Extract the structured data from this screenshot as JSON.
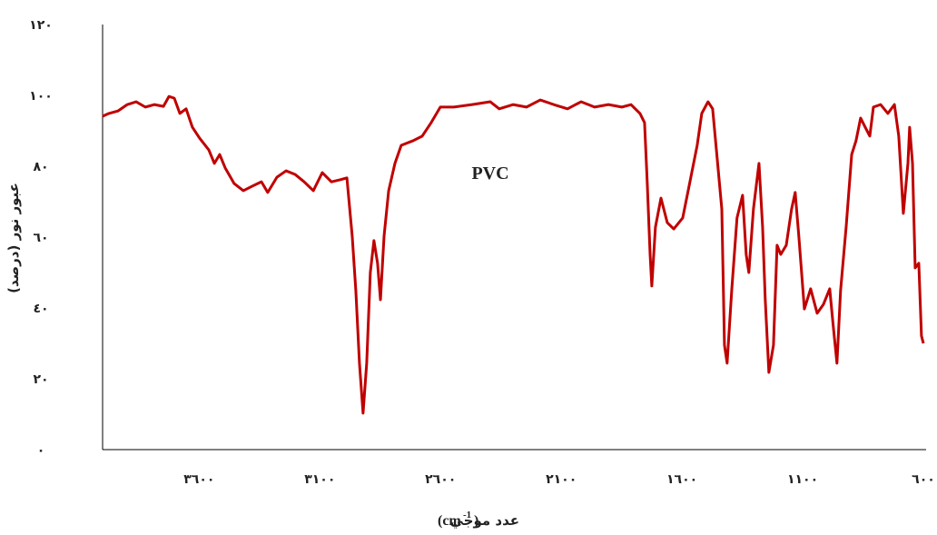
{
  "chart_data": {
    "type": "line",
    "title": "PVC",
    "y_label": "عبور نور (درصد)",
    "x_label": {
      "text": "عدد موجي",
      "unit": "(cm",
      "exponent": "-1",
      "close": ")"
    },
    "xlim": [
      4000,
      600
    ],
    "ylim": [
      0,
      120
    ],
    "xticks": [
      {
        "value": 3600,
        "label": "٣٦٠٠"
      },
      {
        "value": 3100,
        "label": "٣١٠٠"
      },
      {
        "value": 2600,
        "label": "٢٦٠٠"
      },
      {
        "value": 2100,
        "label": "٢١٠٠"
      },
      {
        "value": 1600,
        "label": "١٦٠٠"
      },
      {
        "value": 1100,
        "label": "١١٠٠"
      },
      {
        "value": 600,
        "label": "٦٠٠"
      }
    ],
    "yticks": [
      {
        "value": 0,
        "label": "٠"
      },
      {
        "value": 20,
        "label": "٢٠"
      },
      {
        "value": 40,
        "label": "٤٠"
      },
      {
        "value": 60,
        "label": "٦٠"
      },
      {
        "value": 80,
        "label": "٨٠"
      },
      {
        "value": 100,
        "label": "١٠٠"
      },
      {
        "value": 120,
        "label": "١٢٠"
      }
    ],
    "grid": false,
    "series": [
      {
        "color": "#c00000",
        "x": [
          4000,
          3974,
          3936,
          3898,
          3861,
          3823,
          3786,
          3748,
          3725,
          3703,
          3680,
          3654,
          3628,
          3598,
          3560,
          3537,
          3515,
          3492,
          3455,
          3417,
          3379,
          3342,
          3316,
          3278,
          3240,
          3203,
          3165,
          3127,
          3090,
          3052,
          3015,
          2988,
          2966,
          2951,
          2936,
          2921,
          2906,
          2891,
          2876,
          2861,
          2849,
          2834,
          2815,
          2789,
          2763,
          2714,
          2676,
          2639,
          2601,
          2545,
          2469,
          2394,
          2357,
          2300,
          2244,
          2187,
          2131,
          2074,
          2018,
          1962,
          1905,
          1849,
          1811,
          1774,
          1755,
          1744,
          1732,
          1725,
          1710,
          1687,
          1661,
          1634,
          1597,
          1567,
          1537,
          1518,
          1492,
          1473,
          1454,
          1435,
          1424,
          1413,
          1394,
          1372,
          1349,
          1334,
          1323,
          1304,
          1281,
          1266,
          1255,
          1240,
          1221,
          1206,
          1191,
          1168,
          1146,
          1131,
          1116,
          1093,
          1067,
          1040,
          1014,
          988,
          973,
          958,
          943,
          920,
          897,
          879,
          860,
          841,
          822,
          807,
          777,
          747,
          720,
          702,
          683,
          664,
          657,
          645,
          634,
          619,
          608,
          600
        ],
        "values": [
          94.1,
          94.9,
          95.6,
          97.4,
          98.2,
          96.7,
          97.4,
          96.9,
          99.7,
          99.2,
          94.9,
          96.2,
          91,
          87.9,
          84.6,
          80.8,
          83.3,
          79.5,
          75.1,
          73.1,
          74.4,
          75.6,
          72.6,
          76.9,
          78.7,
          77.7,
          75.6,
          73.1,
          78.2,
          75.6,
          76.2,
          76.7,
          60.3,
          44.9,
          24.4,
          10.3,
          24.4,
          50,
          59,
          52.6,
          42.3,
          60.3,
          73.1,
          80.8,
          85.9,
          87.2,
          88.5,
          92.3,
          96.7,
          96.7,
          97.4,
          98.2,
          96.2,
          97.4,
          96.7,
          98.7,
          97.4,
          96.2,
          98.2,
          96.7,
          97.4,
          96.7,
          97.4,
          94.9,
          92.3,
          75.6,
          55.1,
          46.2,
          62.8,
          71,
          64.1,
          62.3,
          65.4,
          75.6,
          85.9,
          94.9,
          98.2,
          96.2,
          82.1,
          67.9,
          29.5,
          24.4,
          44.9,
          65.4,
          71.8,
          55.1,
          50,
          67.9,
          80.8,
          62.8,
          42.3,
          21.8,
          29.5,
          57.7,
          55.1,
          57.7,
          67.9,
          72.6,
          60.3,
          39.7,
          45.4,
          38.5,
          41,
          45.4,
          34.6,
          24.4,
          44.9,
          62.8,
          83.3,
          87.2,
          93.6,
          91,
          88.5,
          96.7,
          97.4,
          94.9,
          97.4,
          88.5,
          66.7,
          80.8,
          91,
          80.8,
          51.3,
          52.6,
          32.1,
          30
        ]
      }
    ]
  }
}
